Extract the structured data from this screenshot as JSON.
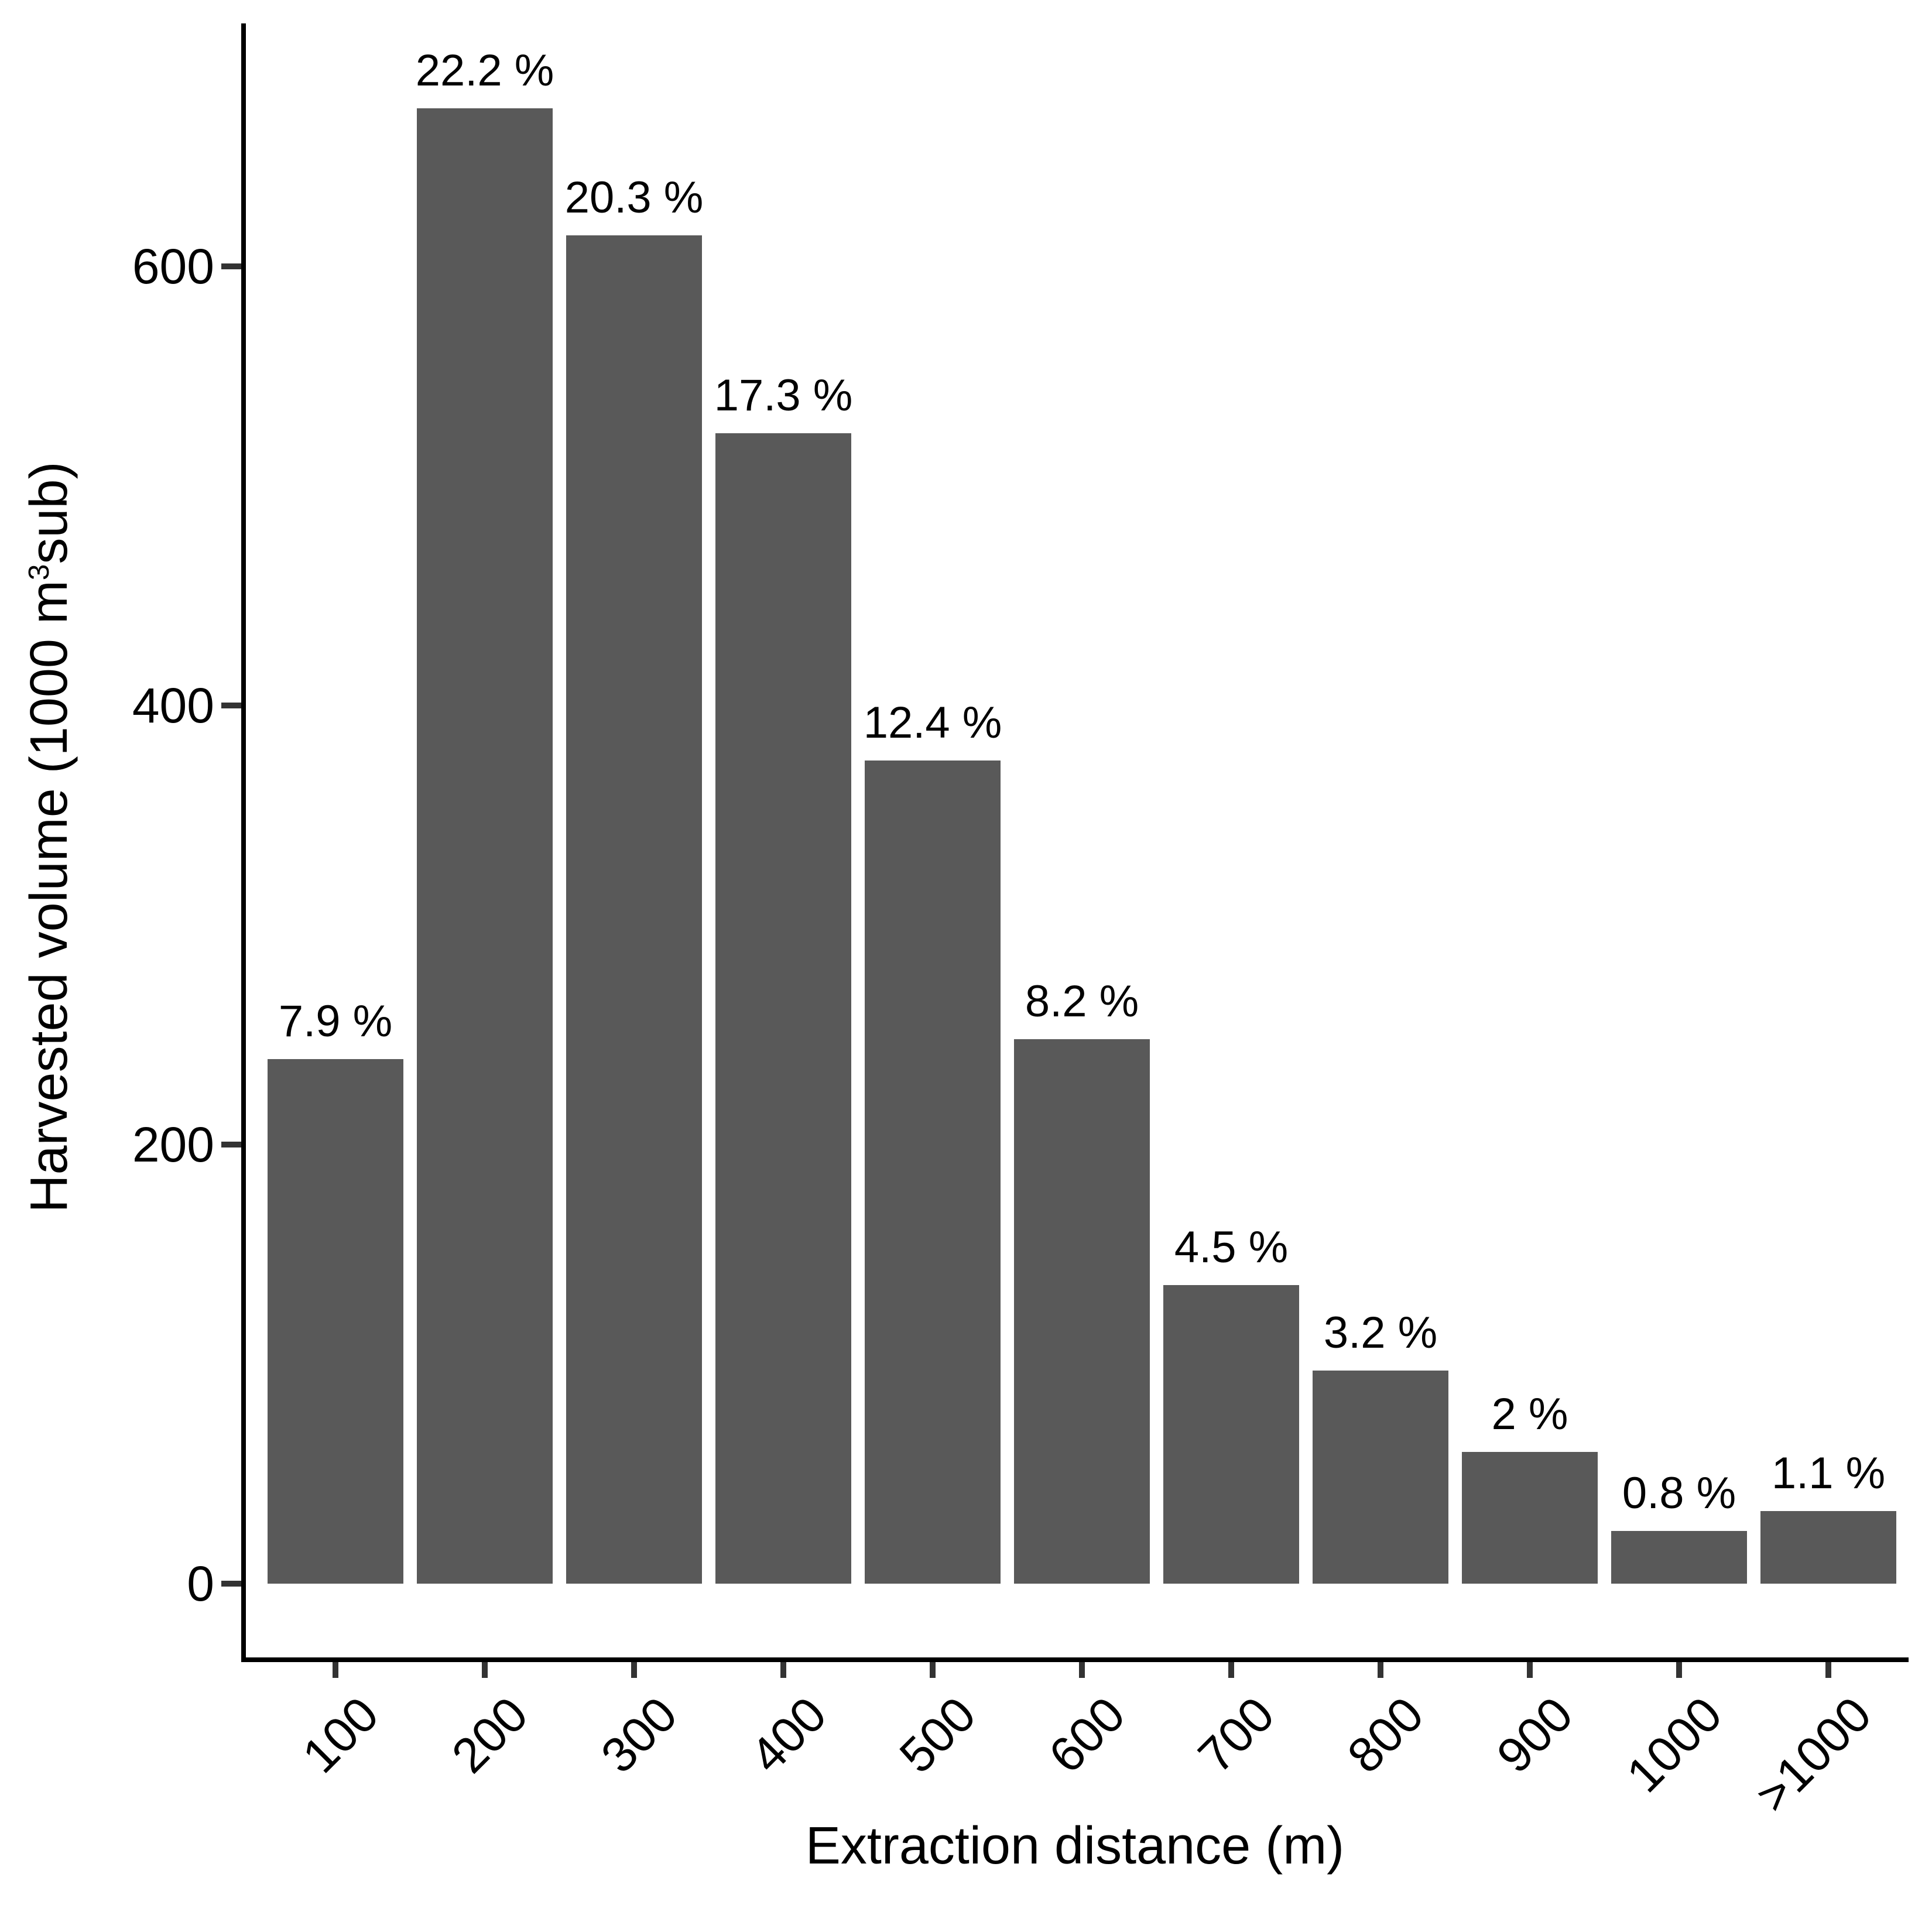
{
  "chart_data": {
    "type": "bar",
    "title": "",
    "xlabel": "Extraction distance (m)",
    "ylabel": "Harvested volume (1000 m3sub)",
    "ylabel_parts": {
      "prefix": "Harvested volume (1000 m",
      "sup": "3",
      "suffix": "sub)"
    },
    "categories": [
      "100",
      "200",
      "300",
      "400",
      "500",
      "600",
      "700",
      "800",
      "900",
      "1000",
      ">1000"
    ],
    "values": [
      239,
      672,
      614,
      524,
      375,
      248,
      136,
      97,
      60,
      24,
      33
    ],
    "bar_labels": [
      "7.9 %",
      "22.2 %",
      "20.3 %",
      "17.3 %",
      "12.4 %",
      "8.2 %",
      "4.5 %",
      "3.2 %",
      "2 %",
      "0.8 %",
      "1.1 %"
    ],
    "y_ticks": [
      0,
      200,
      400,
      600
    ],
    "ylim": [
      0,
      710
    ],
    "values_unit": "1000 m3sub",
    "grid": "off",
    "legend": "none",
    "bar_color": "#595959",
    "axis_color": "#000000",
    "tick_color": "#333333",
    "text_color": "#000000",
    "background_color": "#ffffff"
  }
}
